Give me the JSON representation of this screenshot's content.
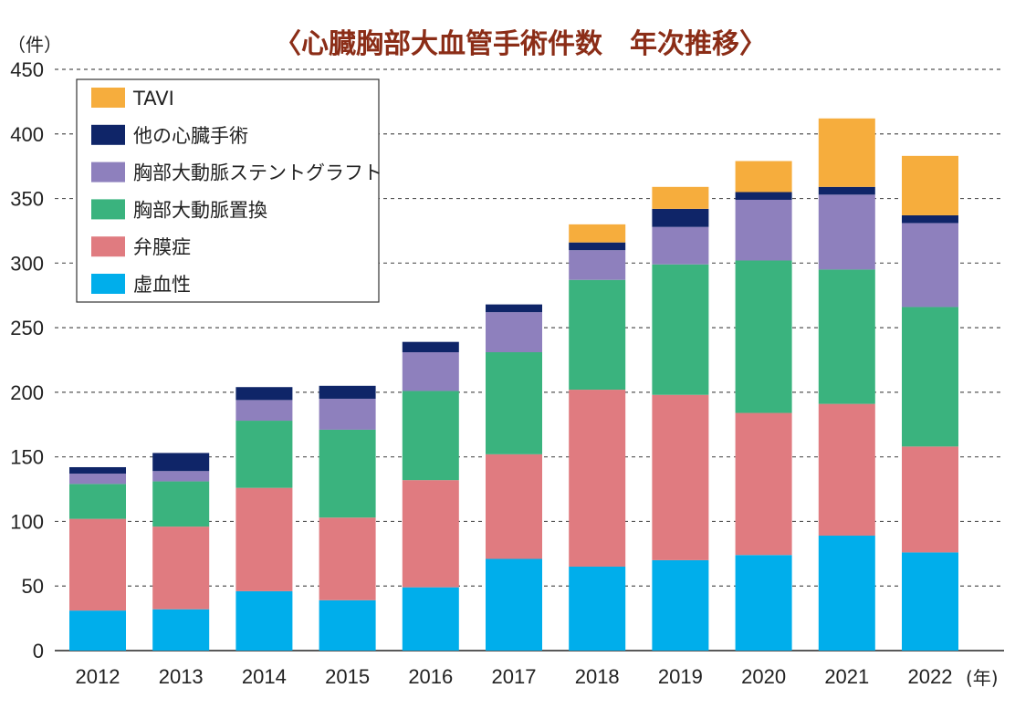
{
  "chart_data": {
    "type": "bar",
    "stacked": true,
    "title": "〈心臓胸部大血管手術件数　年次推移〉",
    "ylabel": "（件）",
    "xlabel": "(年)",
    "ylim": [
      0,
      450
    ],
    "yticks": [
      0,
      50,
      100,
      150,
      200,
      250,
      300,
      350,
      400,
      450
    ],
    "grid": true,
    "legend_position": "top-left",
    "categories": [
      "2012",
      "2013",
      "2014",
      "2015",
      "2016",
      "2017",
      "2018",
      "2019",
      "2020",
      "2021",
      "2022"
    ],
    "series": [
      {
        "name": "虚血性",
        "color": "#00aeeb",
        "values": [
          31,
          32,
          46,
          39,
          49,
          71,
          65,
          70,
          74,
          89,
          76
        ]
      },
      {
        "name": "弁膜症",
        "color": "#e07b80",
        "values": [
          71,
          64,
          80,
          64,
          83,
          81,
          137,
          128,
          110,
          102,
          82
        ]
      },
      {
        "name": "胸部大動脈置換",
        "color": "#3ab37e",
        "values": [
          27,
          35,
          52,
          68,
          69,
          79,
          85,
          101,
          118,
          104,
          108
        ]
      },
      {
        "name": "胸部大動脈ステントグラフト",
        "color": "#8e80bd",
        "values": [
          8,
          8,
          16,
          24,
          30,
          31,
          23,
          29,
          47,
          58,
          65
        ]
      },
      {
        "name": "他の心臓手術",
        "color": "#0f2568",
        "values": [
          5,
          14,
          10,
          10,
          8,
          6,
          6,
          14,
          6,
          6,
          6
        ]
      },
      {
        "name": "TAVI",
        "color": "#f6ad3d",
        "values": [
          0,
          0,
          0,
          0,
          0,
          0,
          14,
          17,
          24,
          53,
          46
        ]
      }
    ],
    "legend_order": [
      "TAVI",
      "他の心臓手術",
      "胸部大動脈ステントグラフト",
      "胸部大動脈置換",
      "弁膜症",
      "虚血性"
    ]
  },
  "colors": {
    "title": "#8b2d17",
    "grid": "#555555",
    "axis": "#222222"
  }
}
